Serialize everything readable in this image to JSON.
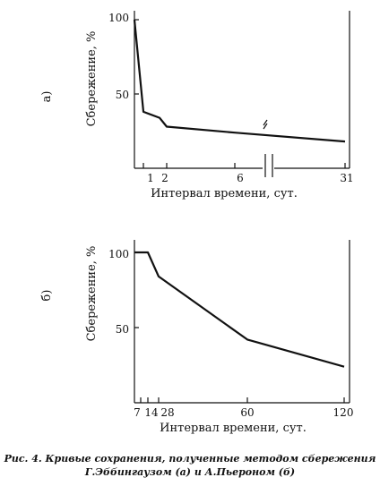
{
  "chart_data": [
    {
      "type": "line",
      "panel_label": "а)",
      "ylabel": "Сбережение, %",
      "xlabel": "Интервал времени, сут.",
      "x_tick_labels": [
        "1",
        "2",
        "6",
        "31"
      ],
      "y_tick_labels": [
        "100",
        "50"
      ],
      "ylim": [
        0,
        100
      ],
      "axis_break": true,
      "series": [
        {
          "x": [
            0.33,
            1,
            1.5,
            2,
            6,
            31
          ],
          "y": [
            100,
            38,
            34,
            28,
            24,
            18
          ]
        }
      ]
    },
    {
      "type": "line",
      "panel_label": "б)",
      "ylabel": "Сбережение, %",
      "xlabel": "Интервал времени, сут.",
      "x_tick_labels": [
        "7",
        "14",
        "28",
        "60",
        "120"
      ],
      "y_tick_labels": [
        "100",
        "50"
      ],
      "ylim": [
        0,
        100
      ],
      "series": [
        {
          "x": [
            0,
            7,
            14,
            28,
            60,
            120
          ],
          "y": [
            100,
            100,
            100,
            84,
            42,
            24
          ]
        }
      ]
    }
  ],
  "caption": {
    "line1": "Рис. 4. Кривые сохранения, полученные методом сбережения",
    "line2": "Г.Эббингаузом (а) и А.Пьероном (б)"
  },
  "colors": {
    "line": "#111111",
    "axis": "#111111",
    "background": "#ffffff"
  }
}
